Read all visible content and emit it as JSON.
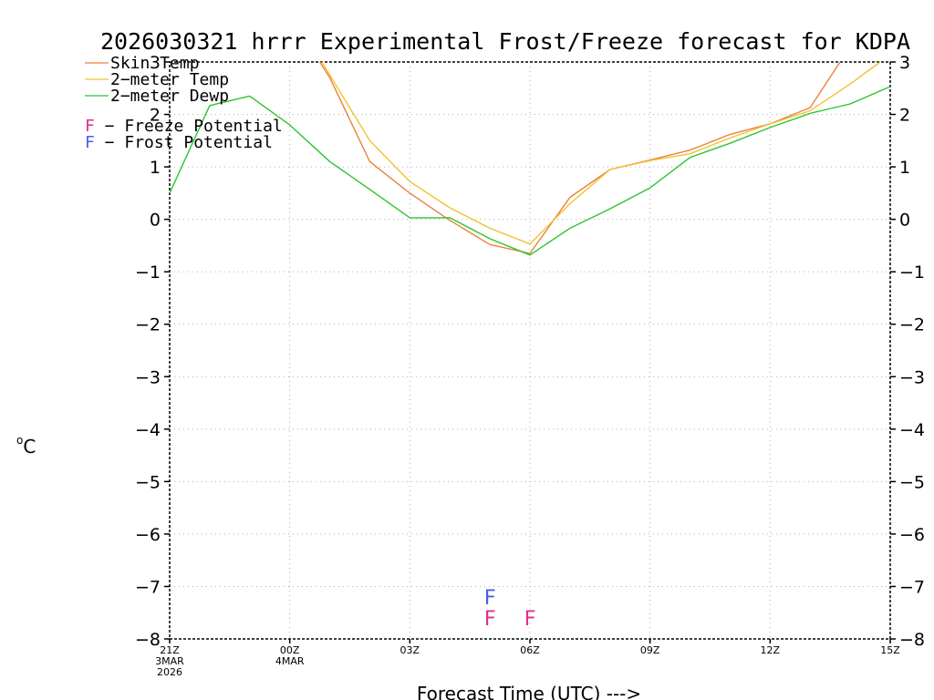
{
  "chart_data": {
    "type": "line",
    "title": "2026030321 hrrr Experimental Frost/Freeze forecast for KDPA",
    "ylabel": "°C",
    "ylabel_prefix": "o",
    "ylabel_unit": "C",
    "xlabel": "Forecast Time (UTC) --->",
    "ylim": [
      -8,
      3
    ],
    "yticks": [
      -8,
      -7,
      -6,
      -5,
      -4,
      -3,
      -2,
      -1,
      0,
      1,
      2,
      3
    ],
    "ytick_labels": [
      "−8",
      "−7",
      "−6",
      "−5",
      "−4",
      "−3",
      "−2",
      "−1",
      "0",
      "1",
      "2",
      "3"
    ],
    "xlim": [
      0,
      18
    ],
    "xticks": [
      {
        "x": 0,
        "lines": [
          "21Z",
          "3MAR",
          "2026"
        ]
      },
      {
        "x": 3,
        "lines": [
          "00Z",
          "4MAR"
        ]
      },
      {
        "x": 6,
        "lines": [
          "03Z"
        ]
      },
      {
        "x": 9,
        "lines": [
          "06Z"
        ]
      },
      {
        "x": 12,
        "lines": [
          "09Z"
        ]
      },
      {
        "x": 15,
        "lines": [
          "12Z"
        ]
      },
      {
        "x": 18,
        "lines": [
          "15Z"
        ]
      }
    ],
    "grid": true,
    "series": [
      {
        "name": "Skin Temp",
        "legend_label": "Skin Temp",
        "color": "#e8823c",
        "x": [
          3.75,
          4,
          5,
          6,
          7,
          8,
          9,
          10,
          11,
          12,
          13,
          14,
          15,
          16,
          16.75
        ],
        "values": [
          3.0,
          2.7,
          1.1,
          0.5,
          -0.02,
          -0.48,
          -0.65,
          0.42,
          0.95,
          1.13,
          1.32,
          1.62,
          1.82,
          2.13,
          3.0
        ]
      },
      {
        "name": "2-meter Temp",
        "legend_label": "2−meter Temp",
        "color": "#f2c230",
        "x": [
          3.8,
          4,
          5,
          6,
          7,
          8,
          9,
          10,
          11,
          12,
          13,
          14,
          15,
          16,
          17,
          17.75
        ],
        "values": [
          3.0,
          2.75,
          1.5,
          0.72,
          0.22,
          -0.17,
          -0.47,
          0.3,
          0.95,
          1.12,
          1.25,
          1.55,
          1.82,
          2.07,
          2.58,
          3.0
        ]
      },
      {
        "name": "2-meter Dewp",
        "legend_label": "2−meter Dewp",
        "color": "#2ec42e",
        "x": [
          0,
          1,
          2,
          3,
          4,
          5,
          6,
          7,
          8,
          9,
          10,
          11,
          12,
          13,
          14,
          15,
          16,
          17,
          18
        ],
        "values": [
          0.5,
          2.17,
          2.35,
          1.8,
          1.1,
          0.57,
          0.03,
          0.03,
          -0.37,
          -0.68,
          -0.17,
          0.2,
          0.6,
          1.18,
          1.45,
          1.75,
          2.02,
          2.2,
          2.53
        ]
      }
    ],
    "markers": [
      {
        "label": "F",
        "kind": "frost",
        "x": 8,
        "y": -7.2,
        "color": "#4a5ee8"
      },
      {
        "label": "F",
        "kind": "freeze",
        "x": 8,
        "y": -7.6,
        "color": "#e0308a"
      },
      {
        "label": "F",
        "kind": "freeze",
        "x": 9,
        "y": -7.6,
        "color": "#e0308a"
      }
    ],
    "marker_legend": [
      {
        "symbol": "F",
        "text": " − Freeze Potential",
        "color": "#e0308a"
      },
      {
        "symbol": "F",
        "text": " − Frost Potential",
        "color": "#4a5ee8"
      }
    ]
  }
}
